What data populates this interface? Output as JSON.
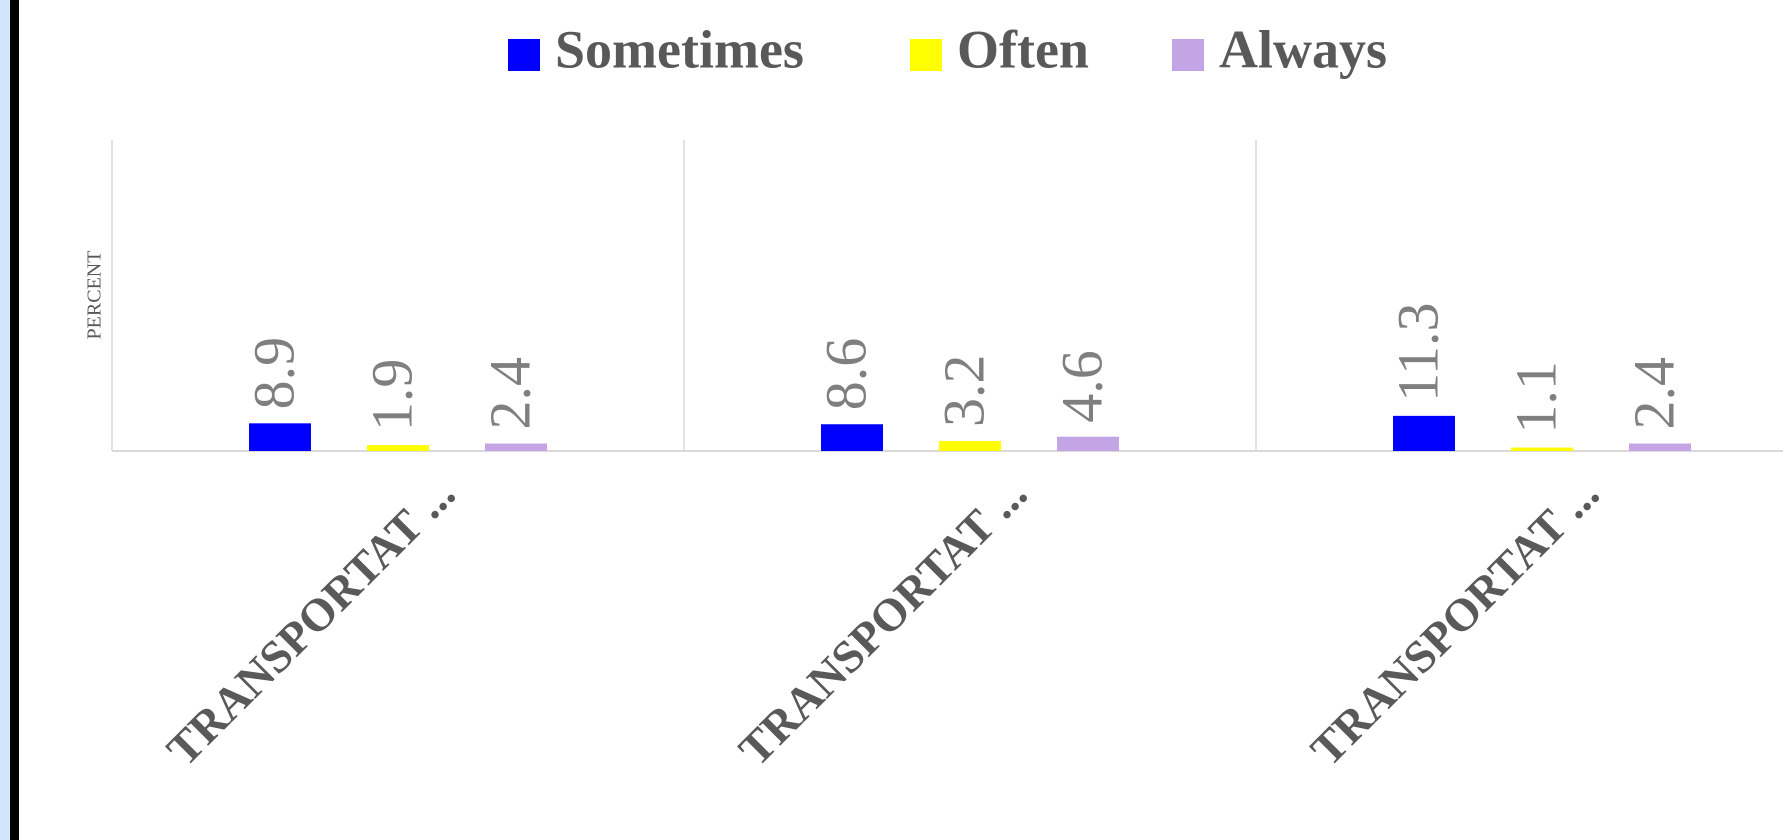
{
  "chart_data": {
    "type": "bar",
    "categories": [
      "TRANSPORTAT ...",
      "TRANSPORTAT ...",
      "TRANSPORTAT ..."
    ],
    "series": [
      {
        "name": "Sometimes",
        "color": "#0000ff",
        "values": [
          8.9,
          8.6,
          11.3
        ]
      },
      {
        "name": "Often",
        "color": "#ffff00",
        "values": [
          1.9,
          3.2,
          1.1
        ]
      },
      {
        "name": "Always",
        "color": "#c3a5e6",
        "values": [
          2.4,
          4.6,
          2.4
        ]
      }
    ],
    "y_label": "PERCENT",
    "ylim": [
      0,
      100
    ],
    "legend": "top"
  }
}
